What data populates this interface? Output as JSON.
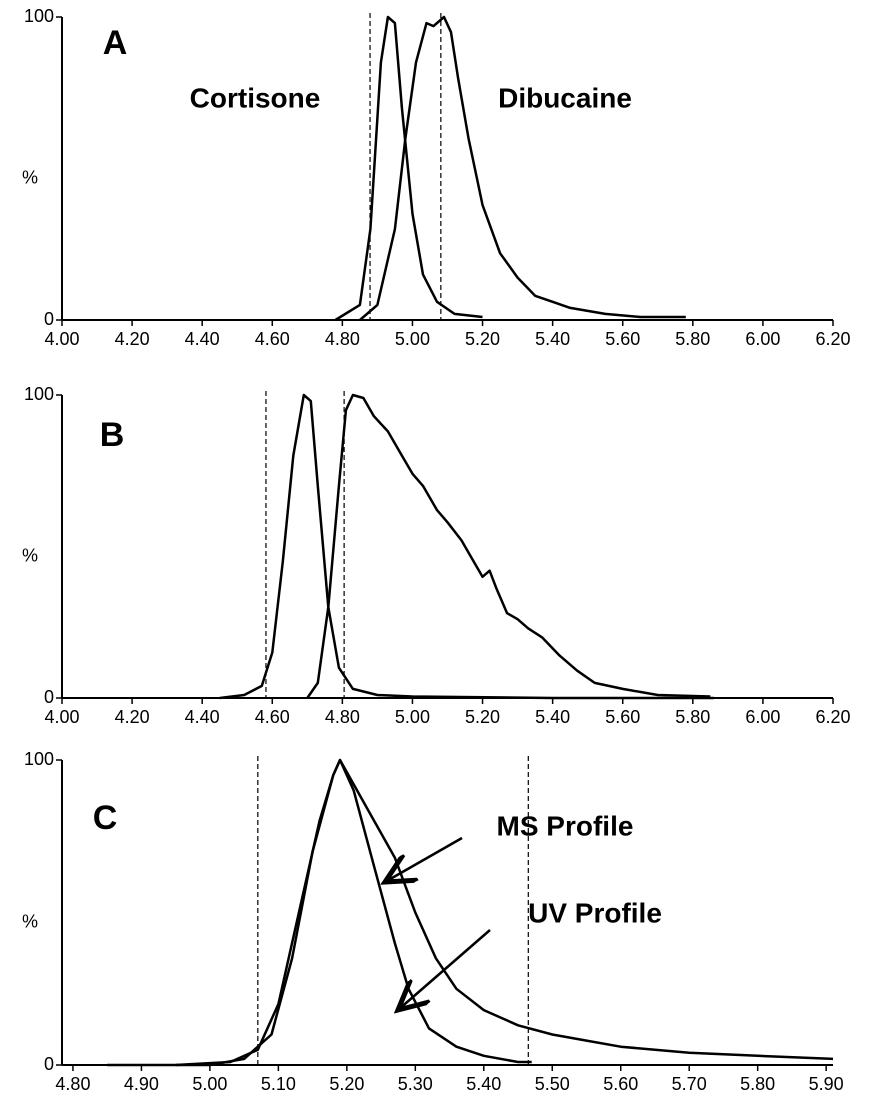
{
  "chart_data": [
    {
      "type": "line",
      "ylabel": "%",
      "annotations": [
        "A",
        "Cortisone",
        "Dibucaine"
      ],
      "xlim": [
        4.0,
        6.2
      ],
      "ylim": [
        0,
        100
      ],
      "xticks": [
        {
          "value": 4.0,
          "label": "4.00"
        },
        {
          "value": 4.2,
          "label": "4.20"
        },
        {
          "value": 4.4,
          "label": "4.40"
        },
        {
          "value": 4.6,
          "label": "4.60"
        },
        {
          "value": 4.8,
          "label": "4.80"
        },
        {
          "value": 5.0,
          "label": "5.00"
        },
        {
          "value": 5.2,
          "label": "5.20"
        },
        {
          "value": 5.4,
          "label": "5.40"
        },
        {
          "value": 5.6,
          "label": "5.60"
        },
        {
          "value": 5.8,
          "label": "5.80"
        },
        {
          "value": 6.0,
          "label": "6.00"
        },
        {
          "value": 6.2,
          "label": "6.20"
        }
      ],
      "yticks": [
        0,
        100
      ],
      "vlines": [
        4.879,
        5.081
      ],
      "series": [
        {
          "color": "#000000",
          "x": [
            4.78,
            4.85,
            4.88,
            4.91,
            4.93,
            4.95,
            4.97,
            5.0,
            5.03,
            5.07,
            5.12,
            5.2
          ],
          "values": [
            0,
            5,
            30,
            85,
            100,
            98,
            70,
            35,
            15,
            6,
            2,
            1
          ]
        },
        {
          "color": "#000000",
          "x": [
            4.85,
            4.9,
            4.95,
            4.98,
            5.01,
            5.04,
            5.06,
            5.09,
            5.11,
            5.13,
            5.16,
            5.2,
            5.25,
            5.3,
            5.35,
            5.4,
            5.45,
            5.55,
            5.65,
            5.78
          ],
          "values": [
            0,
            5,
            30,
            60,
            85,
            98,
            97,
            100,
            95,
            80,
            60,
            38,
            22,
            14,
            8,
            6,
            4,
            2,
            1,
            1
          ]
        }
      ]
    },
    {
      "type": "line",
      "ylabel": "%",
      "annotations": [
        "B"
      ],
      "xlim": [
        4.0,
        6.2
      ],
      "ylim": [
        0,
        100
      ],
      "xticks": [
        {
          "value": 4.0,
          "label": "4.00"
        },
        {
          "value": 4.2,
          "label": "4.20"
        },
        {
          "value": 4.4,
          "label": "4.40"
        },
        {
          "value": 4.6,
          "label": "4.60"
        },
        {
          "value": 4.8,
          "label": "4.80"
        },
        {
          "value": 5.0,
          "label": "5.00"
        },
        {
          "value": 5.2,
          "label": "5.20"
        },
        {
          "value": 5.4,
          "label": "5.40"
        },
        {
          "value": 5.6,
          "label": "5.60"
        },
        {
          "value": 5.8,
          "label": "5.80"
        },
        {
          "value": 6.0,
          "label": "6.00"
        },
        {
          "value": 6.2,
          "label": "6.20"
        }
      ],
      "yticks": [
        0,
        100
      ],
      "vlines": [
        4.582,
        4.805
      ],
      "series": [
        {
          "color": "#000000",
          "x": [
            4.45,
            4.52,
            4.57,
            4.6,
            4.63,
            4.66,
            4.69,
            4.71,
            4.73,
            4.76,
            4.79,
            4.83,
            4.9,
            5.0,
            5.4,
            5.86
          ],
          "values": [
            0,
            1,
            4,
            15,
            45,
            80,
            100,
            98,
            70,
            30,
            10,
            3,
            1,
            0.5,
            0,
            0
          ]
        },
        {
          "color": "#000000",
          "x": [
            4.7,
            4.73,
            4.76,
            4.79,
            4.81,
            4.83,
            4.86,
            4.89,
            4.93,
            4.97,
            5.0,
            5.03,
            5.07,
            5.1,
            5.14,
            5.17,
            5.2,
            5.22,
            5.24,
            5.27,
            5.3,
            5.33,
            5.37,
            5.42,
            5.47,
            5.52,
            5.6,
            5.7,
            5.85
          ],
          "values": [
            0,
            5,
            30,
            70,
            95,
            100,
            99,
            93,
            88,
            80,
            74,
            70,
            62,
            58,
            52,
            46,
            40,
            42,
            36,
            28,
            26,
            23,
            20,
            14,
            9,
            5,
            3,
            1,
            0.5
          ]
        }
      ]
    },
    {
      "type": "line",
      "ylabel": "%",
      "annotations": [
        "C",
        "MS Profile",
        "UV Profile"
      ],
      "xlim": [
        4.784,
        5.91
      ],
      "ylim": [
        0,
        100
      ],
      "xticks": [
        {
          "value": 4.8,
          "label": "4.80"
        },
        {
          "value": 4.9,
          "label": "4.90"
        },
        {
          "value": 5.0,
          "label": "5.00"
        },
        {
          "value": 5.1,
          "label": "5.10"
        },
        {
          "value": 5.2,
          "label": "5.20"
        },
        {
          "value": 5.3,
          "label": "5.30"
        },
        {
          "value": 5.4,
          "label": "5.40"
        },
        {
          "value": 5.5,
          "label": "5.50"
        },
        {
          "value": 5.6,
          "label": "5.60"
        },
        {
          "value": 5.7,
          "label": "5.70"
        },
        {
          "value": 5.8,
          "label": "5.80"
        },
        {
          "value": 5.9,
          "label": "5.90"
        }
      ],
      "yticks": [
        0,
        100
      ],
      "vlines": [
        5.07,
        5.465
      ],
      "series": [
        {
          "color": "#000000",
          "x": [
            4.95,
            5.03,
            5.07,
            5.1,
            5.13,
            5.16,
            5.18,
            5.19,
            5.21,
            5.24,
            5.27,
            5.3,
            5.33,
            5.36,
            5.4,
            5.45,
            5.5,
            5.55,
            5.6,
            5.7,
            5.8,
            5.91
          ],
          "values": [
            0,
            1,
            5,
            20,
            50,
            80,
            95,
            100,
            92,
            80,
            68,
            50,
            35,
            25,
            18,
            13,
            10,
            8,
            6,
            4,
            3,
            2
          ]
        },
        {
          "color": "#000000",
          "x": [
            4.85,
            5.0,
            5.05,
            5.09,
            5.12,
            5.15,
            5.18,
            5.19,
            5.21,
            5.24,
            5.27,
            5.29,
            5.32,
            5.36,
            5.4,
            5.45,
            5.47
          ],
          "values": [
            0,
            0,
            2,
            10,
            35,
            70,
            95,
            100,
            90,
            65,
            40,
            25,
            12,
            6,
            3,
            1,
            1
          ]
        }
      ]
    }
  ]
}
